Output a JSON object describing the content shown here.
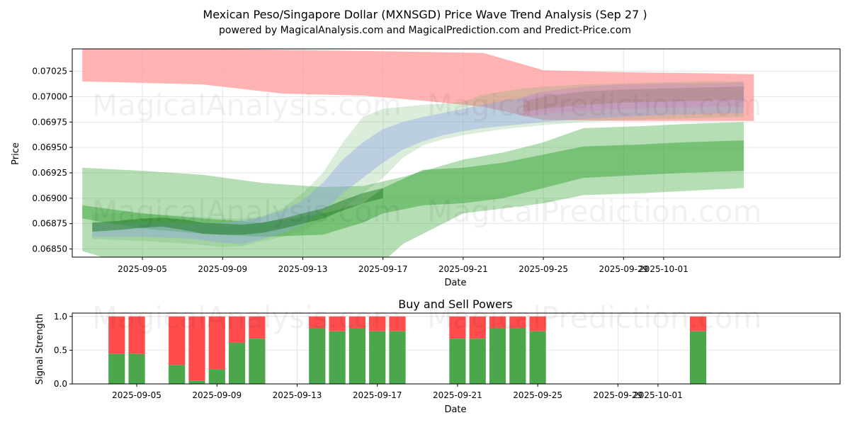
{
  "chart_data": [
    {
      "type": "area",
      "title": "Mexican Peso/Singapore Dollar (MXNSGD) Price Wave Trend Analysis (Sep 27 )",
      "subtitle": "powered by MagicalAnalysis.com and MagicalPrediction.com and Predict-Price.com",
      "xlabel": "Date",
      "ylabel": "Price",
      "xlim_days": [
        -3.5,
        34.8
      ],
      "ylim": [
        0.06842,
        0.07047
      ],
      "grid": true,
      "x_ticks": [
        {
          "day": 0,
          "label": "2025-09-05"
        },
        {
          "day": 4,
          "label": "2025-09-09"
        },
        {
          "day": 8,
          "label": "2025-09-13"
        },
        {
          "day": 12,
          "label": "2025-09-17"
        },
        {
          "day": 16,
          "label": "2025-09-21"
        },
        {
          "day": 20,
          "label": "2025-09-25"
        },
        {
          "day": 24,
          "label": "2025-09-29"
        },
        {
          "day": 26,
          "label": "2025-10-01"
        }
      ],
      "y_ticks": [
        {
          "value": 0.0685,
          "label": "0.06850"
        },
        {
          "value": 0.06875,
          "label": "0.06875"
        },
        {
          "value": 0.069,
          "label": "0.06900"
        },
        {
          "value": 0.06925,
          "label": "0.06925"
        },
        {
          "value": 0.0695,
          "label": "0.06950"
        },
        {
          "value": 0.06975,
          "label": "0.06975"
        },
        {
          "value": 0.07,
          "label": "0.07000"
        },
        {
          "value": 0.07025,
          "label": "0.07025"
        }
      ],
      "series": [
        {
          "name": "red upper band",
          "color": "#ff9999",
          "opacity": 0.75,
          "x": [
            -3,
            3,
            7,
            11,
            14,
            17,
            20,
            24,
            28,
            30.5
          ],
          "upper": [
            0.07047,
            0.07047,
            0.07046,
            0.07045,
            0.07044,
            0.07043,
            0.07026,
            0.07024,
            0.07023,
            0.07022
          ],
          "lower": [
            0.07015,
            0.07012,
            0.07003,
            0.07001,
            0.06996,
            0.0699,
            0.06977,
            0.06976,
            0.06976,
            0.06976
          ]
        },
        {
          "name": "green lower outer band",
          "color": "#2ca02c",
          "opacity": 0.35,
          "x": [
            -3,
            0,
            3,
            6,
            9,
            11,
            13,
            16,
            18,
            20,
            22,
            25,
            27,
            30
          ],
          "upper": [
            0.0693,
            0.06927,
            0.06923,
            0.06915,
            0.06911,
            0.06912,
            0.06921,
            0.06938,
            0.06945,
            0.06955,
            0.06969,
            0.06971,
            0.06973,
            0.06975
          ],
          "lower": [
            0.06848,
            0.0683,
            0.0681,
            0.068,
            0.068,
            0.0682,
            0.06855,
            0.06885,
            0.0689,
            0.06895,
            0.06903,
            0.06905,
            0.06907,
            0.0691
          ]
        },
        {
          "name": "green lower inner band",
          "color": "#2ca02c",
          "opacity": 0.45,
          "x": [
            -3,
            0,
            3,
            6,
            9,
            10,
            11,
            12,
            14,
            16,
            18,
            20,
            22,
            25,
            27,
            30
          ],
          "upper": [
            0.06893,
            0.06885,
            0.0688,
            0.06876,
            0.06885,
            0.0689,
            0.06895,
            0.0691,
            0.06928,
            0.0693,
            0.06935,
            0.06943,
            0.06951,
            0.06953,
            0.06955,
            0.06957
          ],
          "lower": [
            0.0688,
            0.0687,
            0.06865,
            0.06862,
            0.06864,
            0.0687,
            0.06876,
            0.06885,
            0.06893,
            0.06895,
            0.069,
            0.0691,
            0.0692,
            0.06923,
            0.06925,
            0.06927
          ]
        },
        {
          "name": "green wave band",
          "color": "#5aae5a",
          "opacity": 0.22,
          "x": [
            -2.5,
            0,
            2.5,
            4,
            5,
            6,
            7,
            8,
            9,
            10,
            11,
            12,
            13,
            14,
            15,
            16,
            17,
            18,
            19,
            20,
            22,
            24,
            26,
            28,
            30
          ],
          "upper": [
            0.06885,
            0.06885,
            0.06882,
            0.0688,
            0.0688,
            0.06882,
            0.0689,
            0.06905,
            0.06925,
            0.06955,
            0.0698,
            0.06988,
            0.0699,
            0.06992,
            0.06993,
            0.06995,
            0.07002,
            0.07005,
            0.07008,
            0.0701,
            0.07012,
            0.07013,
            0.07014,
            0.07015,
            0.07015
          ],
          "lower": [
            0.0686,
            0.06858,
            0.06855,
            0.06852,
            0.06853,
            0.06858,
            0.06862,
            0.06868,
            0.06878,
            0.0689,
            0.06905,
            0.0692,
            0.0694,
            0.06952,
            0.06958,
            0.06962,
            0.06965,
            0.06968,
            0.0697,
            0.06972,
            0.06975,
            0.06977,
            0.06978,
            0.06979,
            0.0698
          ]
        },
        {
          "name": "blue wave band",
          "color": "#8fa2e8",
          "opacity": 0.4,
          "x": [
            -2.5,
            0,
            2.5,
            4,
            5,
            6,
            7,
            8,
            9,
            10,
            11,
            12,
            13,
            14,
            15,
            16,
            17,
            18,
            19,
            20,
            22,
            24,
            26,
            28,
            30
          ],
          "upper": [
            0.06875,
            0.06876,
            0.06875,
            0.06876,
            0.06878,
            0.06882,
            0.06888,
            0.06898,
            0.06915,
            0.06938,
            0.06955,
            0.06968,
            0.06975,
            0.0698,
            0.06984,
            0.06988,
            0.06992,
            0.06996,
            0.06999,
            0.07002,
            0.07005,
            0.07007,
            0.07008,
            0.07009,
            0.0701
          ],
          "lower": [
            0.06862,
            0.06862,
            0.0686,
            0.06856,
            0.06855,
            0.0686,
            0.06866,
            0.06874,
            0.06887,
            0.06905,
            0.0692,
            0.06935,
            0.06948,
            0.06956,
            0.06962,
            0.06966,
            0.06969,
            0.06971,
            0.06973,
            0.06975,
            0.06978,
            0.0698,
            0.06982,
            0.06983,
            0.06984
          ]
        },
        {
          "name": "pink wave band",
          "color": "#c98fb9",
          "opacity": 0.5,
          "x": [
            19,
            20,
            22,
            24,
            26,
            28,
            30
          ],
          "upper": [
            0.07,
            0.07005,
            0.0701,
            0.07012,
            0.07013,
            0.07013,
            0.07014
          ],
          "lower": [
            0.0698,
            0.06983,
            0.06986,
            0.06988,
            0.06989,
            0.0699,
            0.0699
          ]
        },
        {
          "name": "brown wave band",
          "color": "#a0784f",
          "opacity": 0.3,
          "x": [
            19,
            20,
            22,
            24,
            26,
            28,
            30
          ],
          "upper": [
            0.06995,
            0.07,
            0.07005,
            0.07007,
            0.07008,
            0.07009,
            0.0701
          ],
          "lower": [
            0.06985,
            0.06988,
            0.06992,
            0.06994,
            0.06995,
            0.06996,
            0.06997
          ]
        },
        {
          "name": "dark green core band",
          "color": "#1f7a1f",
          "opacity": 0.5,
          "x": [
            -2.5,
            -1,
            0,
            1,
            2,
            3,
            4,
            5,
            6,
            7,
            8,
            9,
            10,
            11,
            12
          ],
          "upper": [
            0.06876,
            0.06878,
            0.0688,
            0.06881,
            0.06879,
            0.06876,
            0.06875,
            0.06874,
            0.06876,
            0.0688,
            0.06885,
            0.0689,
            0.06898,
            0.06905,
            0.0691
          ],
          "lower": [
            0.06867,
            0.06869,
            0.06871,
            0.06872,
            0.06869,
            0.06865,
            0.06864,
            0.06864,
            0.06866,
            0.0687,
            0.06875,
            0.0688,
            0.06888,
            0.06895,
            0.069
          ]
        }
      ]
    },
    {
      "type": "bar",
      "title": "Buy and Sell Powers",
      "xlabel": "Date",
      "ylabel": "Signal Strength",
      "ylim": [
        0,
        1.05
      ],
      "grid": true,
      "y_ticks": [
        {
          "value": 0,
          "label": "0.0"
        },
        {
          "value": 0.5,
          "label": "0.5"
        },
        {
          "value": 1,
          "label": "1.0"
        }
      ],
      "x_ticks": [
        {
          "day": 0,
          "label": "2025-09-05"
        },
        {
          "day": 4,
          "label": "2025-09-09"
        },
        {
          "day": 8,
          "label": "2025-09-13"
        },
        {
          "day": 12,
          "label": "2025-09-17"
        },
        {
          "day": 16,
          "label": "2025-09-21"
        },
        {
          "day": 20,
          "label": "2025-09-25"
        },
        {
          "day": 24,
          "label": "2025-09-29"
        },
        {
          "day": 26,
          "label": "2025-10-01"
        }
      ],
      "colors": {
        "buy": "#4ca64c",
        "sell": "#ff4d4d"
      },
      "bars": [
        {
          "day": -1,
          "buy": 0.45
        },
        {
          "day": 0,
          "buy": 0.45
        },
        {
          "day": 2,
          "buy": 0.28
        },
        {
          "day": 3,
          "buy": 0.05
        },
        {
          "day": 4,
          "buy": 0.22
        },
        {
          "day": 5,
          "buy": 0.61
        },
        {
          "day": 6,
          "buy": 0.67
        },
        {
          "day": 9,
          "buy": 0.83
        },
        {
          "day": 10,
          "buy": 0.78
        },
        {
          "day": 11,
          "buy": 0.83
        },
        {
          "day": 12,
          "buy": 0.78
        },
        {
          "day": 13,
          "buy": 0.78
        },
        {
          "day": 16,
          "buy": 0.67
        },
        {
          "day": 17,
          "buy": 0.67
        },
        {
          "day": 18,
          "buy": 0.83
        },
        {
          "day": 19,
          "buy": 0.83
        },
        {
          "day": 20,
          "buy": 0.78
        },
        {
          "day": 28,
          "buy": 0.78
        }
      ]
    }
  ],
  "watermarks": {
    "top_left_top": "MagicalAnalysis.com",
    "top_right_top": "MagicalPrediction.com",
    "top_left_bottom": "MagicalAnalysis.com",
    "top_right_bottom": "MagicalPrediction.com",
    "bottom_left": "MagicalAnalysis.com",
    "bottom_right": "MagicalPrediction.com"
  }
}
